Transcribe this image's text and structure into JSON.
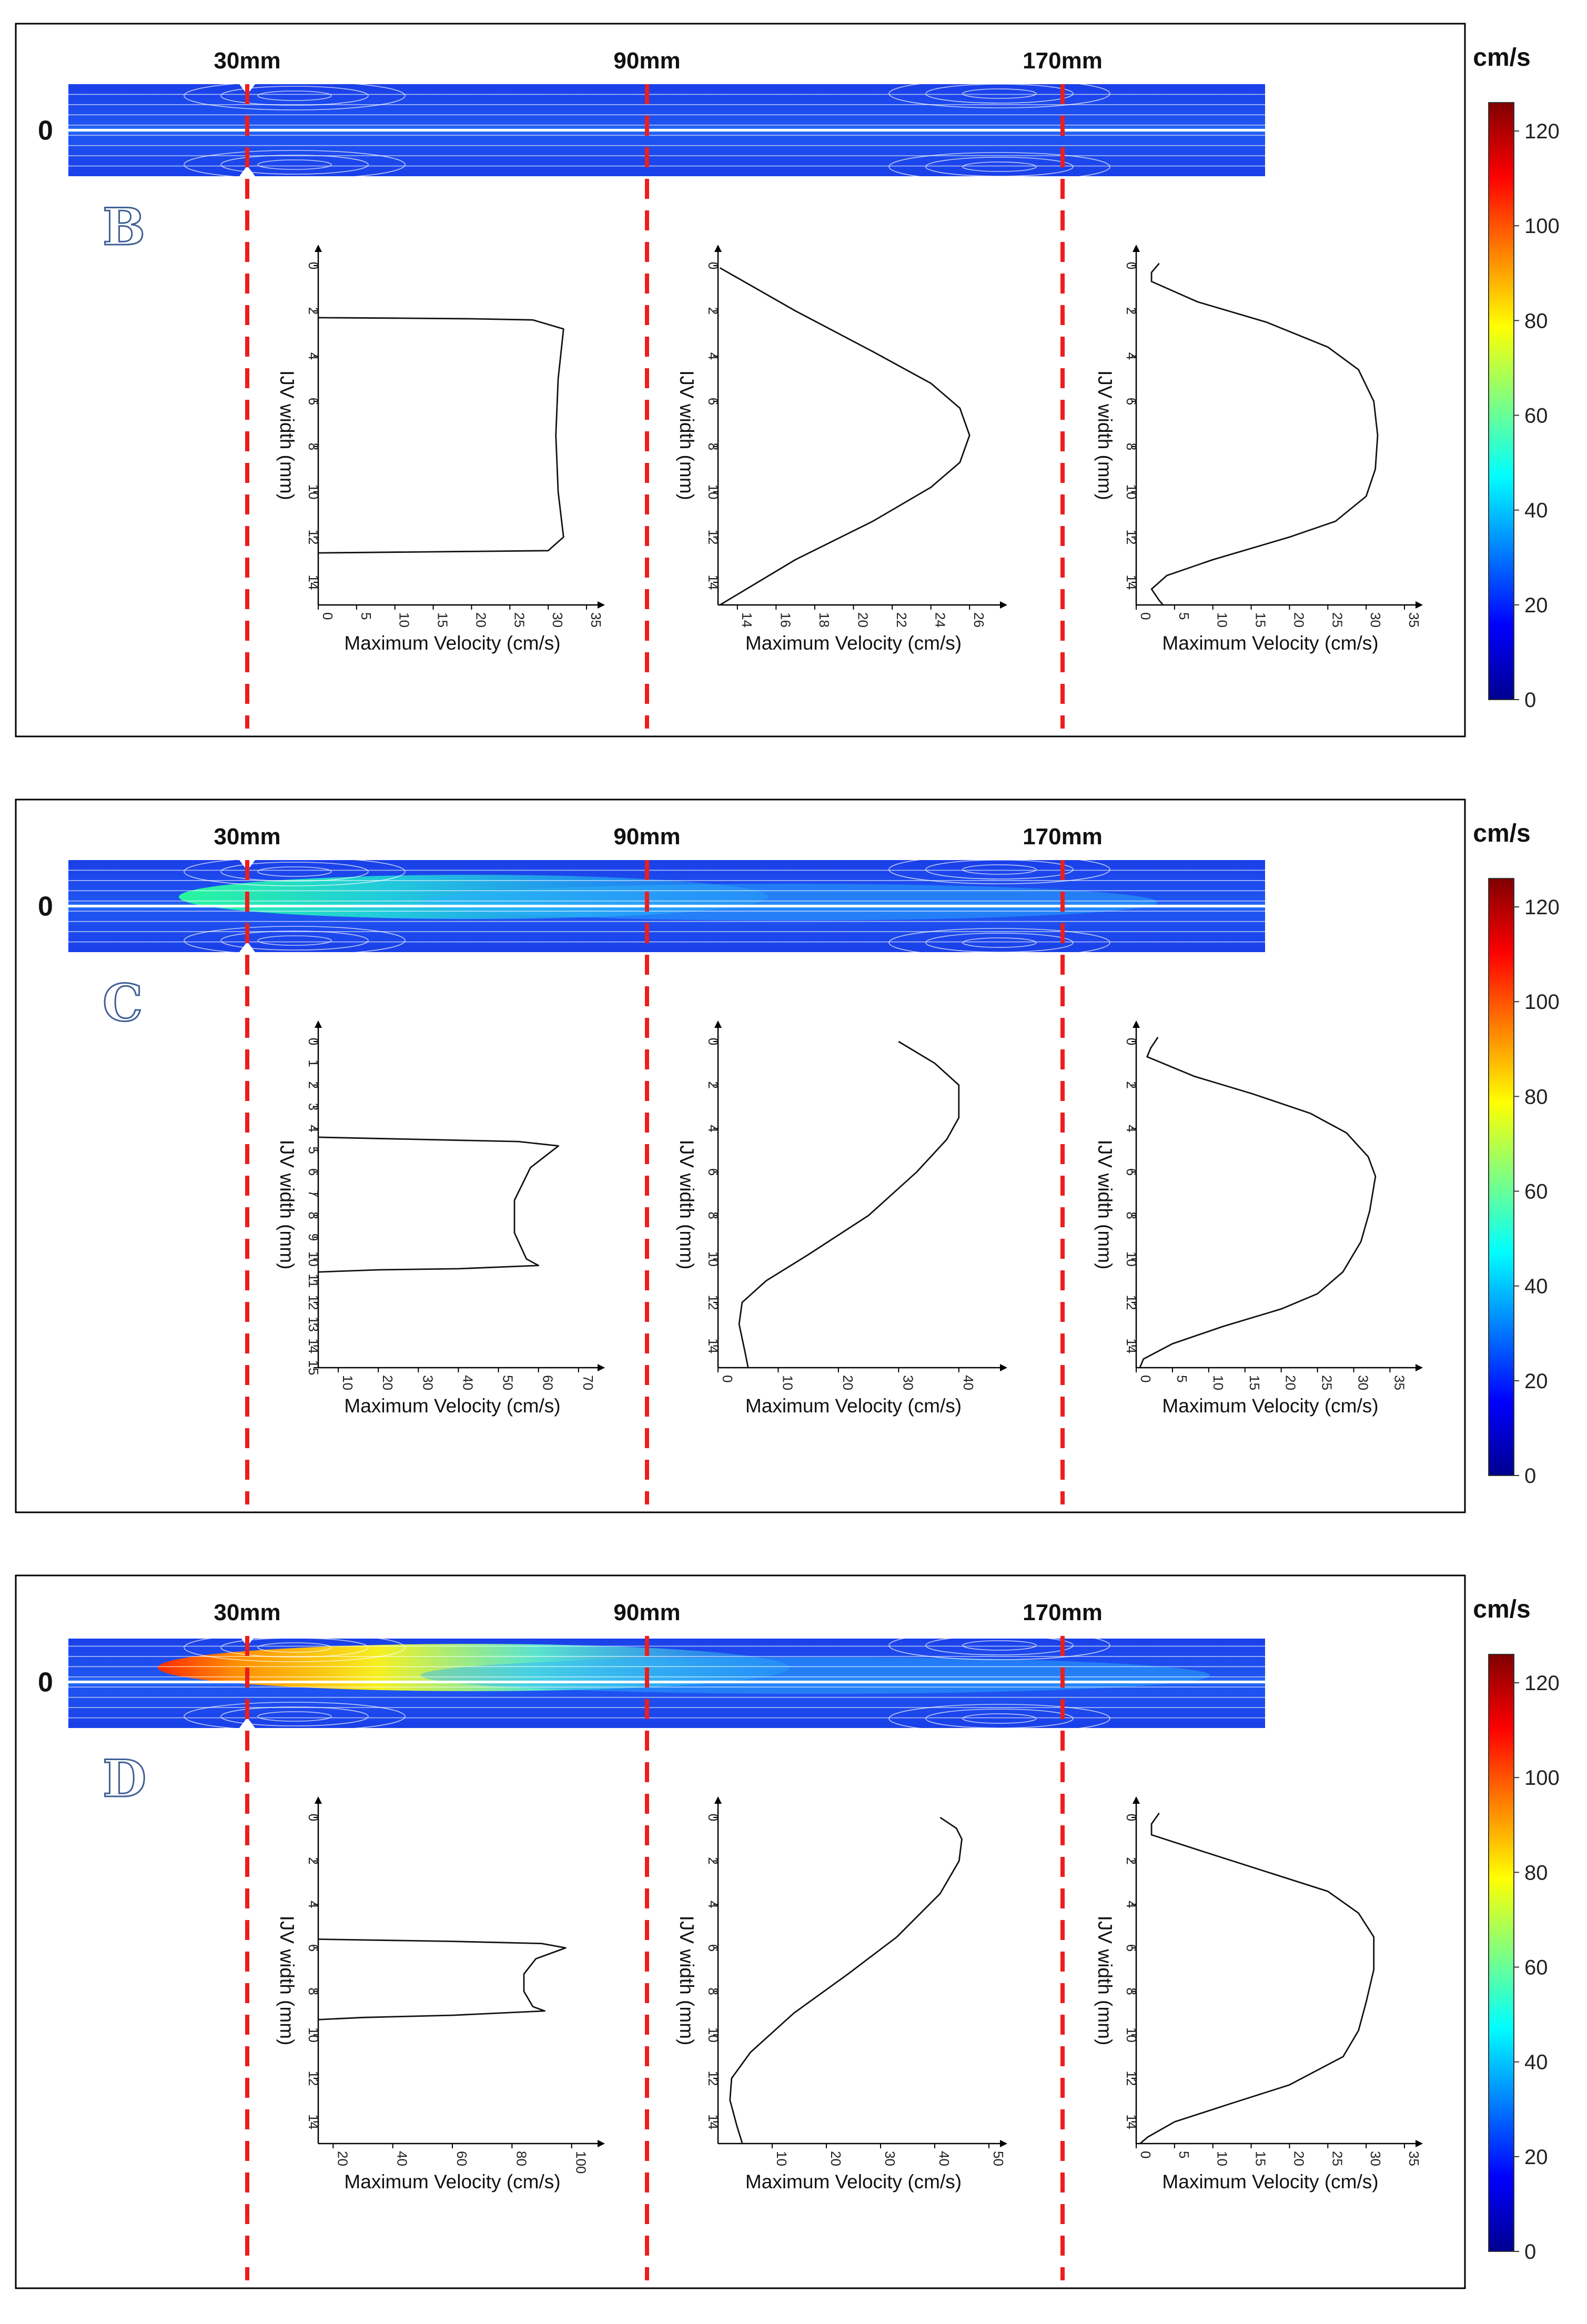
{
  "figure": {
    "position_labels": [
      "30mm",
      "90mm",
      "170mm"
    ],
    "centerline_label": "0",
    "colorbar": {
      "unit": "cm/s",
      "ticks": [
        0,
        20,
        40,
        60,
        80,
        100,
        120
      ],
      "colors": [
        "#00008f",
        "#0000ff",
        "#0080ff",
        "#00ffff",
        "#80ff80",
        "#ffff00",
        "#ff8000",
        "#ff0000",
        "#800000"
      ]
    },
    "axis_titles": {
      "x": "Maximum Velocity (cm/s)",
      "y": "IJV width (mm)"
    }
  },
  "chart_data": [
    {
      "panel": "B",
      "type": "line",
      "plots": [
        {
          "position": "30mm",
          "xlim": [
            0,
            35
          ],
          "xticks": [
            0,
            5,
            10,
            15,
            20,
            25,
            30,
            35
          ],
          "ylim": [
            0,
            15
          ],
          "yticks": [
            0,
            2,
            4,
            6,
            8,
            10,
            12,
            14
          ],
          "points": [
            [
              0,
              2.3
            ],
            [
              10,
              2.32
            ],
            [
              20,
              2.35
            ],
            [
              28,
              2.4
            ],
            [
              32,
              2.8
            ],
            [
              31.3,
              5
            ],
            [
              31,
              7.5
            ],
            [
              31.3,
              10
            ],
            [
              32,
              12
            ],
            [
              30,
              12.6
            ],
            [
              15,
              12.65
            ],
            [
              0,
              12.7
            ]
          ]
        },
        {
          "position": "90mm",
          "xlim": [
            13,
            27
          ],
          "xticks": [
            14,
            16,
            18,
            20,
            22,
            24,
            26
          ],
          "ylim": [
            0,
            15
          ],
          "yticks": [
            0,
            2,
            4,
            6,
            8,
            10,
            12,
            14
          ],
          "points": [
            [
              13.1,
              0.1
            ],
            [
              17,
              2
            ],
            [
              21,
              3.8
            ],
            [
              24,
              5.2
            ],
            [
              25.5,
              6.3
            ],
            [
              26,
              7.5
            ],
            [
              25.5,
              8.7
            ],
            [
              24,
              9.8
            ],
            [
              21,
              11.3
            ],
            [
              17,
              13
            ],
            [
              13.1,
              15
            ]
          ]
        },
        {
          "position": "170mm",
          "xlim": [
            0,
            35
          ],
          "xticks": [
            0,
            5,
            10,
            15,
            20,
            25,
            30,
            35
          ],
          "ylim": [
            0,
            15
          ],
          "yticks": [
            0,
            2,
            4,
            6,
            8,
            10,
            12,
            14
          ],
          "points": [
            [
              3,
              -0.1
            ],
            [
              2,
              0.3
            ],
            [
              2,
              0.7
            ],
            [
              8,
              1.6
            ],
            [
              17,
              2.5
            ],
            [
              25,
              3.6
            ],
            [
              29,
              4.6
            ],
            [
              31,
              6
            ],
            [
              31.5,
              7.5
            ],
            [
              31.2,
              9
            ],
            [
              30,
              10.2
            ],
            [
              26,
              11.3
            ],
            [
              20,
              12
            ],
            [
              10,
              13
            ],
            [
              4,
              13.7
            ],
            [
              2,
              14.3
            ],
            [
              3,
              14.8
            ],
            [
              3.5,
              15
            ]
          ]
        }
      ]
    },
    {
      "panel": "C",
      "type": "line",
      "plots": [
        {
          "position": "30mm",
          "xlim": [
            5,
            72
          ],
          "xticks": [
            10,
            20,
            30,
            40,
            50,
            60,
            70
          ],
          "ylim": [
            0,
            15
          ],
          "yticks": [
            0,
            1,
            2,
            3,
            4,
            5,
            6,
            7,
            8,
            9,
            10,
            11,
            12,
            13,
            14,
            15
          ],
          "points": [
            [
              5,
              4.4
            ],
            [
              30,
              4.5
            ],
            [
              55,
              4.6
            ],
            [
              65,
              4.8
            ],
            [
              58,
              5.8
            ],
            [
              54,
              7.3
            ],
            [
              54,
              8.8
            ],
            [
              57,
              10
            ],
            [
              60,
              10.3
            ],
            [
              40,
              10.45
            ],
            [
              20,
              10.5
            ],
            [
              5,
              10.6
            ]
          ]
        },
        {
          "position": "90mm",
          "xlim": [
            0,
            45
          ],
          "xticks": [
            0,
            10,
            20,
            30,
            40
          ],
          "ylim": [
            0,
            15
          ],
          "yticks": [
            0,
            2,
            4,
            6,
            8,
            10,
            12,
            14
          ],
          "points": [
            [
              30,
              0
            ],
            [
              36,
              1
            ],
            [
              40,
              2
            ],
            [
              40,
              3.5
            ],
            [
              38,
              4.5
            ],
            [
              33,
              6
            ],
            [
              25,
              8
            ],
            [
              15,
              9.8
            ],
            [
              8,
              11
            ],
            [
              4,
              12
            ],
            [
              3.5,
              13
            ],
            [
              4.5,
              14.3
            ],
            [
              5,
              15
            ]
          ]
        },
        {
          "position": "170mm",
          "xlim": [
            0,
            37
          ],
          "xticks": [
            0,
            5,
            10,
            15,
            20,
            25,
            30,
            35
          ],
          "ylim": [
            0,
            15
          ],
          "yticks": [
            0,
            2,
            4,
            6,
            8,
            10,
            12,
            14
          ],
          "points": [
            [
              3,
              -0.2
            ],
            [
              2,
              0.3
            ],
            [
              1.5,
              0.7
            ],
            [
              8,
              1.6
            ],
            [
              16,
              2.4
            ],
            [
              24,
              3.3
            ],
            [
              29,
              4.2
            ],
            [
              32,
              5.3
            ],
            [
              33,
              6.2
            ],
            [
              32.2,
              7.8
            ],
            [
              31,
              9.2
            ],
            [
              28.5,
              10.6
            ],
            [
              25,
              11.6
            ],
            [
              20,
              12.3
            ],
            [
              12,
              13.1
            ],
            [
              5,
              13.9
            ],
            [
              1,
              14.6
            ],
            [
              0.5,
              15
            ]
          ]
        }
      ]
    },
    {
      "panel": "D",
      "type": "line",
      "plots": [
        {
          "position": "30mm",
          "xlim": [
            15,
            105
          ],
          "xticks": [
            20,
            40,
            60,
            80,
            100
          ],
          "ylim": [
            0,
            15
          ],
          "yticks": [
            0,
            2,
            4,
            6,
            8,
            10,
            12,
            14
          ],
          "points": [
            [
              15,
              5.6
            ],
            [
              60,
              5.7
            ],
            [
              90,
              5.8
            ],
            [
              98,
              6
            ],
            [
              88,
              6.5
            ],
            [
              84,
              7.2
            ],
            [
              84,
              8
            ],
            [
              87,
              8.7
            ],
            [
              91,
              8.9
            ],
            [
              60,
              9.1
            ],
            [
              30,
              9.2
            ],
            [
              15,
              9.3
            ]
          ]
        },
        {
          "position": "90mm",
          "xlim": [
            0,
            50
          ],
          "xticks": [
            10,
            20,
            30,
            40,
            50
          ],
          "ylim": [
            0,
            15
          ],
          "yticks": [
            0,
            2,
            4,
            6,
            8,
            10,
            12,
            14
          ],
          "points": [
            [
              41,
              0
            ],
            [
              44,
              0.5
            ],
            [
              45,
              1
            ],
            [
              44.5,
              2
            ],
            [
              41,
              3.5
            ],
            [
              33,
              5.5
            ],
            [
              24,
              7.2
            ],
            [
              14,
              9
            ],
            [
              6,
              10.8
            ],
            [
              2.5,
              12
            ],
            [
              2.2,
              13
            ],
            [
              3.5,
              14.2
            ],
            [
              4.5,
              15
            ]
          ]
        },
        {
          "position": "170mm",
          "xlim": [
            0,
            35
          ],
          "xticks": [
            0,
            5,
            10,
            15,
            20,
            25,
            30,
            35
          ],
          "ylim": [
            0,
            15
          ],
          "yticks": [
            0,
            2,
            4,
            6,
            8,
            10,
            12,
            14
          ],
          "points": [
            [
              3,
              -0.2
            ],
            [
              2,
              0.3
            ],
            [
              2,
              0.8
            ],
            [
              9,
              1.6
            ],
            [
              17,
              2.5
            ],
            [
              25,
              3.4
            ],
            [
              29,
              4.4
            ],
            [
              31,
              5.5
            ],
            [
              31,
              7
            ],
            [
              30,
              8.5
            ],
            [
              29,
              9.8
            ],
            [
              27,
              11
            ],
            [
              20,
              12.3
            ],
            [
              12,
              13.2
            ],
            [
              5,
              14
            ],
            [
              1.5,
              14.7
            ],
            [
              0.5,
              15
            ]
          ]
        }
      ]
    }
  ]
}
